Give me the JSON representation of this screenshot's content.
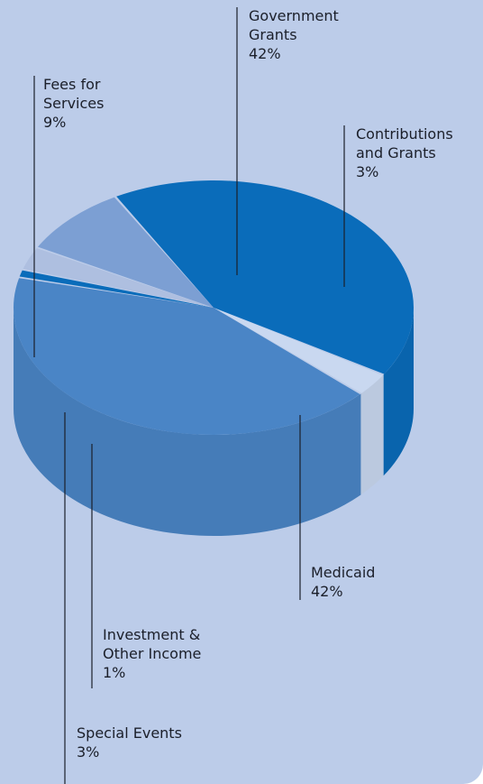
{
  "chart_data": {
    "type": "pie",
    "style": "3d",
    "slices": [
      {
        "id": "government-grants",
        "lines": [
          "Government",
          "Grants"
        ],
        "value": 42,
        "value_label": "42%",
        "color": "#0a6cba"
      },
      {
        "id": "contributions-and-grants",
        "lines": [
          "Contributions",
          "and Grants"
        ],
        "value": 3,
        "value_label": "3%",
        "color": "#c9d8f0"
      },
      {
        "id": "medicaid",
        "lines": [
          "Medicaid"
        ],
        "value": 42,
        "value_label": "42%",
        "color": "#4a85c6"
      },
      {
        "id": "investment-other-income",
        "lines": [
          "Investment &",
          "Other Income"
        ],
        "value": 1,
        "value_label": "1%",
        "color": "#0a6cba"
      },
      {
        "id": "special-events",
        "lines": [
          "Special Events"
        ],
        "value": 3,
        "value_label": "3%",
        "color": "#aebfe0"
      },
      {
        "id": "fees-for-services",
        "lines": [
          "Fees for",
          "Services"
        ],
        "value": 9,
        "value_label": "9%",
        "color": "#7c9fd3"
      }
    ]
  },
  "colors": {
    "background": "#bccce9",
    "leader_line": "#1b1f2a"
  }
}
